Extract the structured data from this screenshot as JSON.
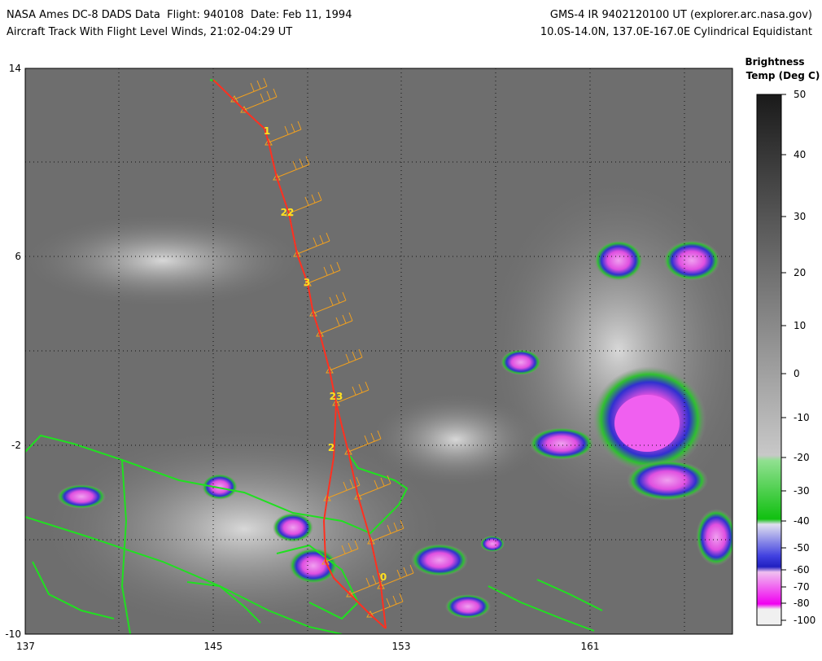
{
  "header": {
    "left_lines": [
      "NASA Ames DC-8 DADS Data  Flight: 940108  Date: Feb 11, 1994",
      "Aircraft Track With Flight Level Winds, 21:02-04:29 UT"
    ],
    "right_lines": [
      "GMS-4 IR 9402120100 UT (explorer.arc.nasa.gov)",
      "10.0S-14.0N, 137.0E-167.0E Cylindrical Equidistant"
    ]
  },
  "map": {
    "lat_labels": [
      "14",
      "6",
      "-2",
      "-10"
    ],
    "lon_labels": [
      "137",
      "145",
      "153",
      "161"
    ],
    "track_labels": [
      "1",
      "22",
      "3",
      "23",
      "2",
      "0"
    ]
  },
  "colorbar": {
    "title_lines": [
      "Brightness",
      "Temp (Deg C)"
    ],
    "ticks": [
      "50",
      "40",
      "30",
      "20",
      "10",
      "0",
      "-10",
      "-20",
      "-30",
      "-40",
      "-50",
      "-60",
      "-70",
      "-80",
      "-100"
    ]
  }
}
